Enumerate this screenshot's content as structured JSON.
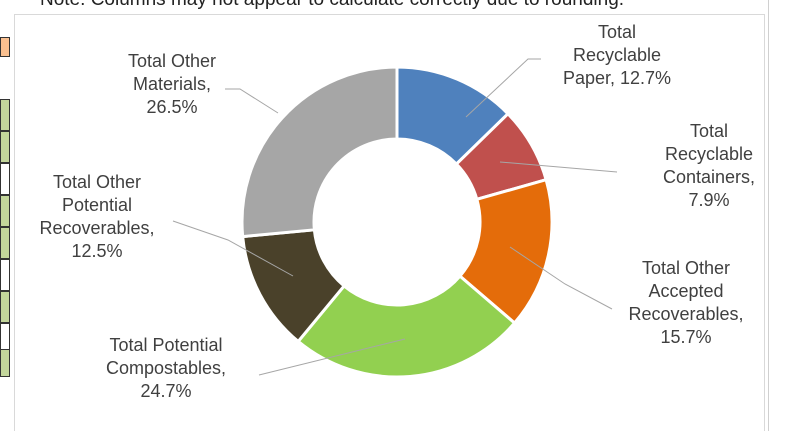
{
  "note_text": "Note: Columns may not appear to calculate correctly due to rounding.",
  "chart_data": {
    "type": "pie",
    "title": "",
    "categories": [
      "Total Recyclable Paper",
      "Total Recyclable Containers",
      "Total Other Accepted Recoverables",
      "Total Potential Compostables",
      "Total Other Potential Recoverables",
      "Total Other Materials"
    ],
    "values": [
      12.7,
      7.9,
      15.7,
      24.7,
      12.5,
      26.5
    ],
    "value_unit": "%",
    "donut": true,
    "colors": [
      "#4f81bd",
      "#c0504d",
      "#e46c0a",
      "#92d050",
      "#4a412a",
      "#a6a6a6"
    ],
    "data_labels": [
      [
        "Total",
        "Recyclable",
        "Paper, 12.7%"
      ],
      [
        "Total",
        "Recyclable",
        "Containers,",
        "7.9%"
      ],
      [
        "Total Other",
        "Accepted",
        "Recoverables,",
        "15.7%"
      ],
      [
        "Total Potential",
        "Compostables,",
        "24.7%"
      ],
      [
        "Total Other",
        "Potential",
        "Recoverables,",
        "12.5%"
      ],
      [
        "Total Other",
        "Materials,",
        "26.5%"
      ]
    ],
    "legend": "none"
  }
}
